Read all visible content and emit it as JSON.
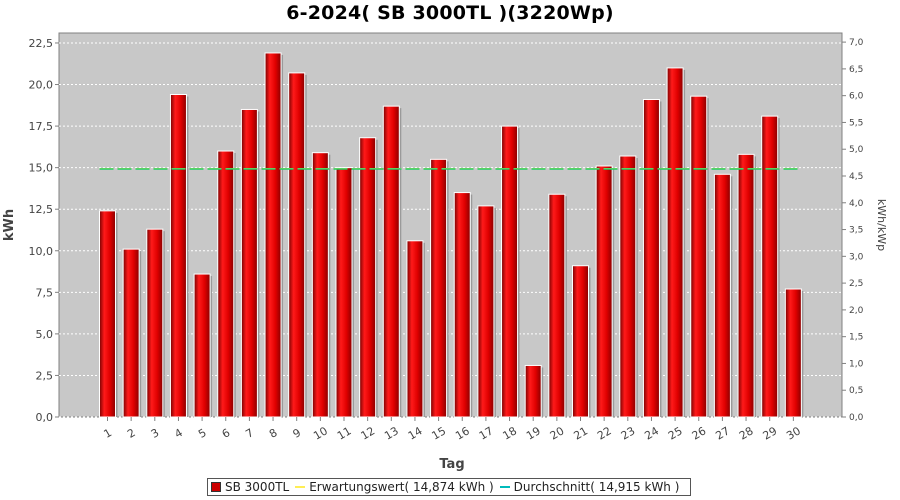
{
  "chart_data": {
    "type": "bar",
    "title": "6-2024( SB 3000TL )(3220Wp)",
    "xlabel": "Tag",
    "ylabel": "kWh",
    "ylabel_right": "kWh/kWp",
    "ylim": [
      0,
      23.1
    ],
    "ylim_right": [
      0,
      7.17
    ],
    "yticks": [
      "0,0",
      "2,5",
      "5,0",
      "7,5",
      "10,0",
      "12,5",
      "15,0",
      "17,5",
      "20,0",
      "22,5"
    ],
    "yticks_right": [
      "0,0",
      "0,5",
      "1,0",
      "1,5",
      "2,0",
      "2,5",
      "3,0",
      "3,5",
      "4,0",
      "4,5",
      "5,0",
      "5,5",
      "6,0",
      "6,5",
      "7,0"
    ],
    "categories": [
      "1",
      "2",
      "3",
      "4",
      "5",
      "6",
      "7",
      "8",
      "9",
      "10",
      "11",
      "12",
      "13",
      "14",
      "15",
      "16",
      "17",
      "18",
      "19",
      "20",
      "21",
      "22",
      "23",
      "24",
      "25",
      "26",
      "27",
      "28",
      "29",
      "30"
    ],
    "series": [
      {
        "name": "SB 3000TL",
        "color": "#e00000",
        "values": [
          12.4,
          10.1,
          11.3,
          19.4,
          8.6,
          16.0,
          18.5,
          21.9,
          20.7,
          15.9,
          15.0,
          16.8,
          18.7,
          10.6,
          15.5,
          13.5,
          12.7,
          17.5,
          3.1,
          13.4,
          9.1,
          15.1,
          15.7,
          19.1,
          21.0,
          19.3,
          14.6,
          15.8,
          18.1,
          7.7
        ]
      },
      {
        "name": "Erwartungswert( 14,874 kWh )",
        "color": "#ffff66",
        "value": 14.874,
        "style": "dashed"
      },
      {
        "name": "Durchschnitt( 14,915 kWh )",
        "color": "#00cccc",
        "value": 14.915,
        "style": "dashed"
      }
    ],
    "grid": true,
    "legend_position": "bottom"
  }
}
